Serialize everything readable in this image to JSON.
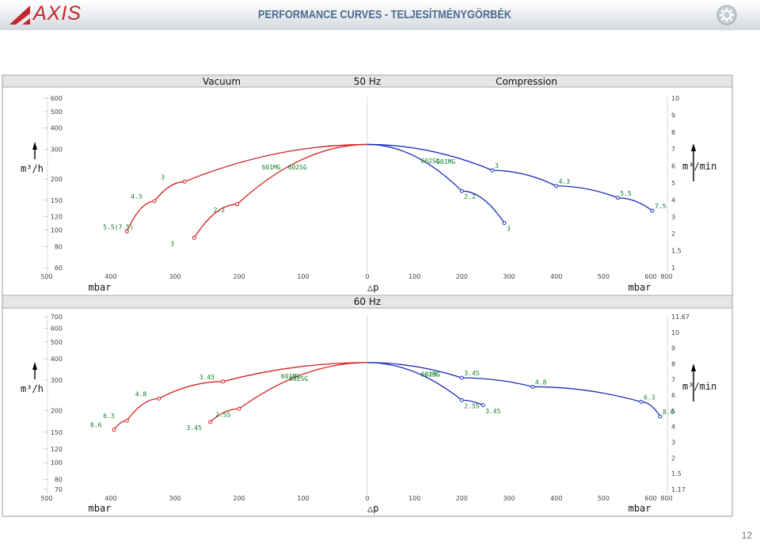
{
  "header": {
    "logo_text": "AXIS",
    "title": "PERFORMANCE CURVES - TELJESÍTMÉNYGÖRBÉK"
  },
  "page_number": "12",
  "colors": {
    "vacuum": "#d42020",
    "compression": "#1a2fb8",
    "label": "#12802a",
    "title": "#4b6b8e"
  },
  "chart_data": [
    {
      "type": "line",
      "header": {
        "left": "Vacuum",
        "center": "50 Hz",
        "right": "Compression"
      },
      "ylabel_left": "m³/h",
      "ylabel_right": "m³/min",
      "xlabel_left": "mbar",
      "xlabel_center": "△p",
      "xlabel_right": "mbar",
      "log_y": true,
      "y_left_ticks": [
        600,
        500,
        400,
        300,
        200,
        150,
        120,
        100,
        80,
        60
      ],
      "y_right_ticks": [
        "10",
        "9",
        "8",
        "7",
        "6",
        "5",
        "4",
        "3",
        "2",
        "1.5",
        "1"
      ],
      "x_left_ticks": [
        500,
        400,
        300,
        200,
        100,
        0
      ],
      "x_right_ticks": [
        100,
        200,
        300,
        400,
        500,
        600,
        800
      ],
      "series": [
        {
          "name": "602SG",
          "side": "vacuum",
          "points": [
            {
              "x": 0,
              "y": 320,
              "label": ""
            },
            {
              "x": 203,
              "y": 142,
              "label": "2.2"
            },
            {
              "x": 270,
              "y": 90,
              "label": "3"
            }
          ]
        },
        {
          "name": "601MG",
          "side": "vacuum",
          "points": [
            {
              "x": 0,
              "y": 320,
              "label": ""
            },
            {
              "x": 285,
              "y": 193,
              "label": "3"
            },
            {
              "x": 332,
              "y": 148,
              "label": "4.3"
            },
            {
              "x": 375,
              "y": 98,
              "label": "5.5(7.5)"
            }
          ]
        },
        {
          "name": "602SG",
          "side": "compression",
          "points": [
            {
              "x": 0,
              "y": 320,
              "label": ""
            },
            {
              "x": 200,
              "y": 170,
              "label": "2.2"
            },
            {
              "x": 290,
              "y": 110,
              "label": "3"
            }
          ]
        },
        {
          "name": "601MG",
          "side": "compression",
          "points": [
            {
              "x": 0,
              "y": 320,
              "label": ""
            },
            {
              "x": 265,
              "y": 225,
              "label": "3"
            },
            {
              "x": 400,
              "y": 182,
              "label": "4.3"
            },
            {
              "x": 530,
              "y": 155,
              "label": "5.5"
            },
            {
              "x": 620,
              "y": 130,
              "label": "7.5"
            }
          ]
        }
      ]
    },
    {
      "type": "line",
      "header": {
        "left": "",
        "center": "60 Hz",
        "right": ""
      },
      "ylabel_left": "m³/h",
      "ylabel_right": "m³/min",
      "xlabel_left": "mbar",
      "xlabel_center": "△p",
      "xlabel_right": "mbar",
      "log_y": true,
      "y_left_ticks": [
        700,
        600,
        500,
        400,
        300,
        200,
        150,
        120,
        100,
        80,
        70
      ],
      "y_right_ticks": [
        "11.67",
        "10",
        "9",
        "8",
        "7",
        "6",
        "5",
        "4",
        "3",
        "2",
        "1.5",
        "1.17"
      ],
      "x_left_ticks": [
        500,
        400,
        300,
        200,
        100,
        0
      ],
      "x_right_ticks": [
        100,
        200,
        300,
        400,
        500,
        600,
        800
      ],
      "series": [
        {
          "name": "602SG",
          "side": "vacuum",
          "points": [
            {
              "x": 0,
              "y": 380,
              "label": ""
            },
            {
              "x": 200,
              "y": 205,
              "label": "2.55"
            },
            {
              "x": 245,
              "y": 172,
              "label": "3.45"
            }
          ]
        },
        {
          "name": "601MG",
          "side": "vacuum",
          "points": [
            {
              "x": 0,
              "y": 380,
              "label": ""
            },
            {
              "x": 225,
              "y": 295,
              "label": "3.45"
            },
            {
              "x": 325,
              "y": 235,
              "label": "4.8"
            },
            {
              "x": 375,
              "y": 175,
              "label": "6.3"
            },
            {
              "x": 395,
              "y": 155,
              "label": "8.6"
            }
          ]
        },
        {
          "name": "602SG",
          "side": "compression",
          "points": [
            {
              "x": 0,
              "y": 380,
              "label": ""
            },
            {
              "x": 200,
              "y": 230,
              "label": "2.55"
            },
            {
              "x": 245,
              "y": 215,
              "label": "3.45"
            }
          ]
        },
        {
          "name": "601MG",
          "side": "compression",
          "points": [
            {
              "x": 0,
              "y": 380,
              "label": ""
            },
            {
              "x": 200,
              "y": 310,
              "label": "3.45"
            },
            {
              "x": 350,
              "y": 275,
              "label": "4.8"
            },
            {
              "x": 580,
              "y": 225,
              "label": "6.3"
            },
            {
              "x": 720,
              "y": 185,
              "label": "8.6"
            }
          ]
        }
      ]
    }
  ]
}
